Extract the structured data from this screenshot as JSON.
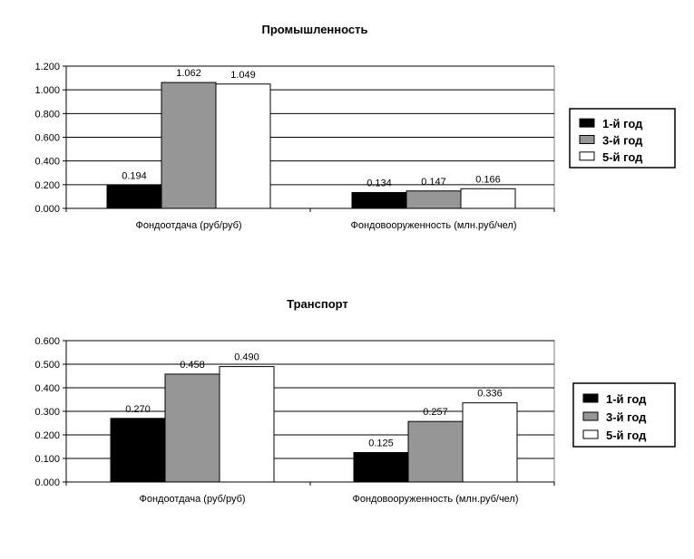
{
  "chart_data": [
    {
      "type": "bar",
      "title": "Промышленность",
      "xlabel": "",
      "ylabel": "",
      "categories": [
        "Фондоотдача (руб/руб)",
        "Фондовооруженность (млн.руб/чел)"
      ],
      "series": [
        {
          "name": "1-й год",
          "values": [
            0.194,
            0.134
          ],
          "labels": [
            "0.194",
            "0.134"
          ],
          "color": "#000000"
        },
        {
          "name": "3-й год",
          "values": [
            1.062,
            0.147
          ],
          "labels": [
            "1.062",
            "0.147"
          ],
          "color": "#969696"
        },
        {
          "name": "5-й год",
          "values": [
            1.049,
            0.166
          ],
          "labels": [
            "1.049",
            "0.166"
          ],
          "color": "#ffffff"
        }
      ],
      "ylim": [
        0,
        1.2
      ],
      "yticks": [
        "0.000",
        "0.200",
        "0.400",
        "0.600",
        "0.800",
        "1.000",
        "1.200"
      ],
      "grid": true,
      "legend_position": "right"
    },
    {
      "type": "bar",
      "title": "Транспорт",
      "xlabel": "",
      "ylabel": "",
      "categories": [
        "Фондоотдача (руб/руб)",
        "Фондовооруженность (млн.руб/чел)"
      ],
      "series": [
        {
          "name": "1-й год",
          "values": [
            0.27,
            0.125
          ],
          "labels": [
            "0.270",
            "0.125"
          ],
          "color": "#000000"
        },
        {
          "name": "3-й год",
          "values": [
            0.458,
            0.257
          ],
          "labels": [
            "0.458",
            "0.257"
          ],
          "color": "#969696"
        },
        {
          "name": "5-й год",
          "values": [
            0.49,
            0.336
          ],
          "labels": [
            "0.490",
            "0.336"
          ],
          "color": "#ffffff"
        }
      ],
      "ylim": [
        0,
        0.6
      ],
      "yticks": [
        "0.000",
        "0.100",
        "0.200",
        "0.300",
        "0.400",
        "0.500",
        "0.600"
      ],
      "grid": true,
      "legend_position": "right"
    }
  ]
}
